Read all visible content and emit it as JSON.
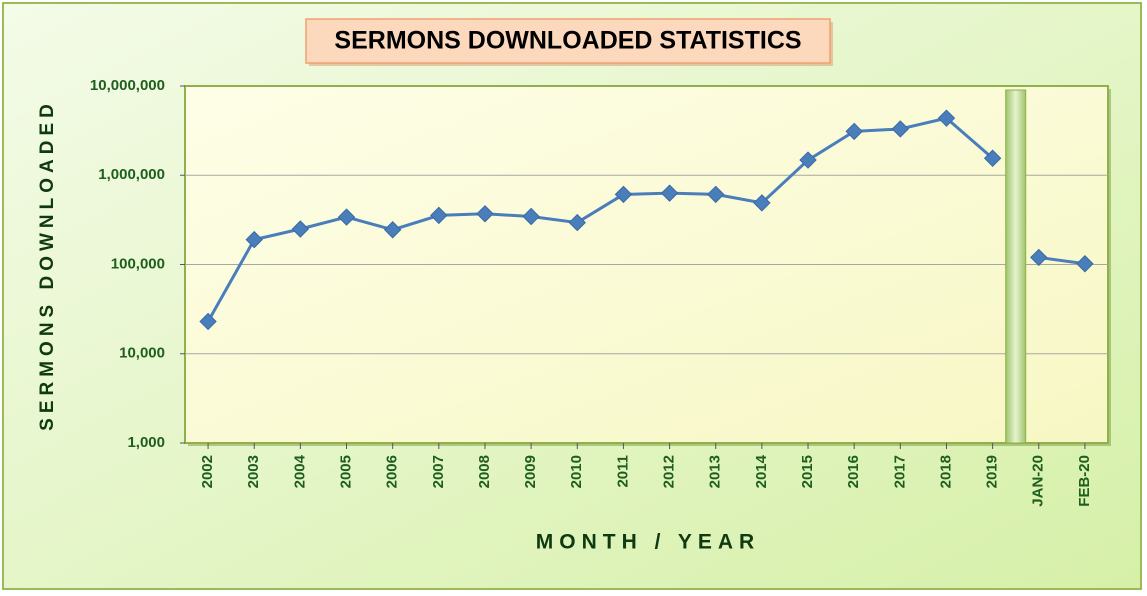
{
  "chart_data": {
    "type": "line",
    "title": "SERMONS DOWNLOADED STATISTICS",
    "x_label": "MONTH / YEAR",
    "y_label": "SERMONS DOWNLOADED",
    "categories": [
      "2002",
      "2003",
      "2004",
      "2005",
      "2006",
      "2007",
      "2008",
      "2009",
      "2010",
      "2011",
      "2012",
      "2013",
      "2014",
      "2015",
      "2016",
      "2017",
      "2018",
      "2019",
      "JAN-20",
      "FEB-20"
    ],
    "series": [
      {
        "color": "#4a7ebb",
        "values": [
          23000,
          190000,
          250000,
          340000,
          245000,
          355000,
          370000,
          345000,
          295000,
          610000,
          630000,
          610000,
          490000,
          1480000,
          3100000,
          3300000,
          4360000,
          1550000,
          null,
          null
        ]
      },
      {
        "color": "#4a7ebb",
        "values": [
          null,
          null,
          null,
          null,
          null,
          null,
          null,
          null,
          null,
          null,
          null,
          null,
          null,
          null,
          null,
          null,
          null,
          null,
          120000,
          102000
        ]
      }
    ],
    "y_scale": "log",
    "ylim": [
      1000,
      10000000
    ],
    "yticks": [
      {
        "value": 1000,
        "label": "1,000"
      },
      {
        "value": 10000,
        "label": "10,000"
      },
      {
        "value": 100000,
        "label": "100,000"
      },
      {
        "value": 1000000,
        "label": "1,000,000"
      },
      {
        "value": 10000000,
        "label": "10,000,000"
      }
    ],
    "grid": true
  }
}
